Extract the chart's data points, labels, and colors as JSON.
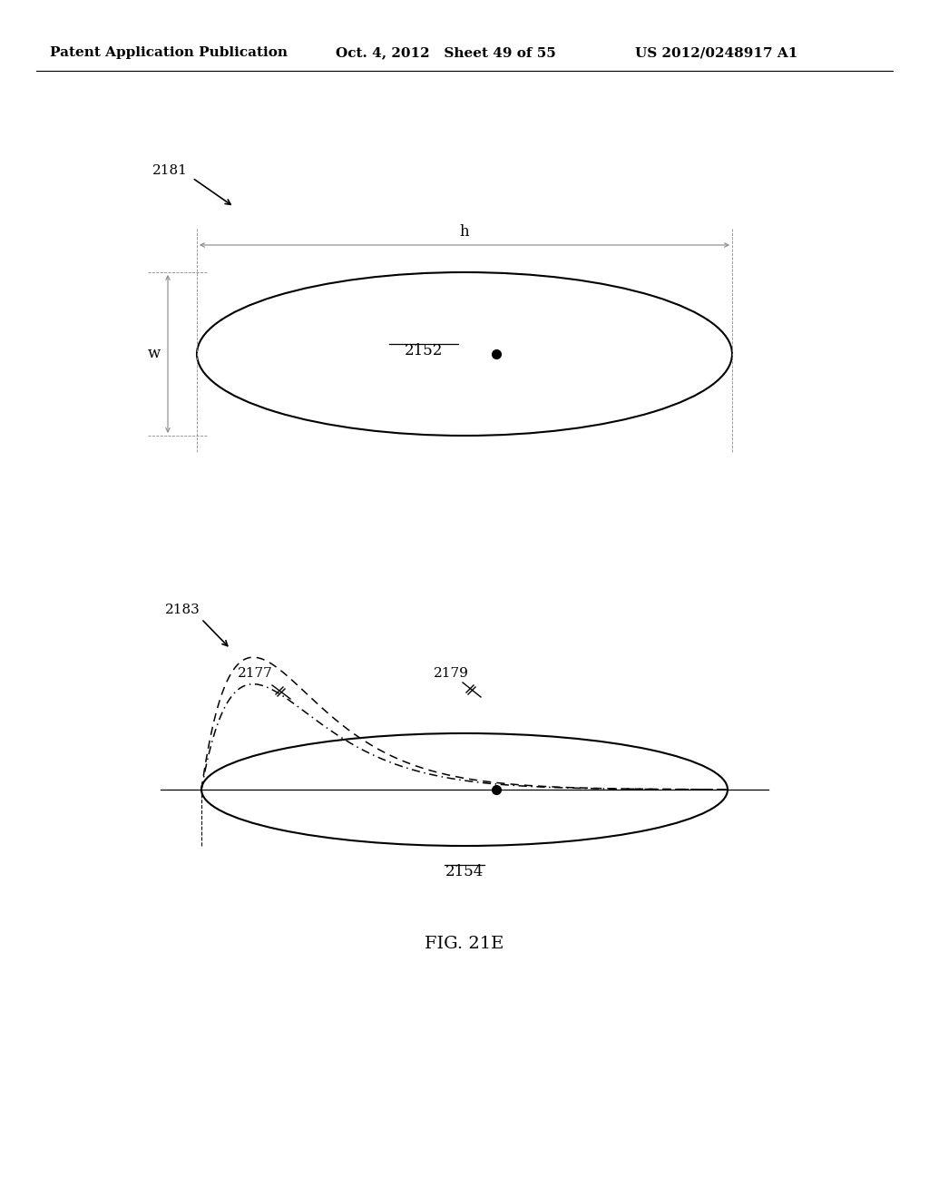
{
  "header_left": "Patent Application Publication",
  "header_mid": "Oct. 4, 2012   Sheet 49 of 55",
  "header_right": "US 2012/0248917 A1",
  "fig_label": "FIG. 21E",
  "label_2181": "2181",
  "label_2183": "2183",
  "label_2152": "2152",
  "label_2154": "2154",
  "label_2177": "2177",
  "label_2179": "2179",
  "dim_h": "h",
  "dim_w": "w",
  "bg_color": "#ffffff",
  "line_color": "#000000",
  "dim_line_color": "#888888"
}
